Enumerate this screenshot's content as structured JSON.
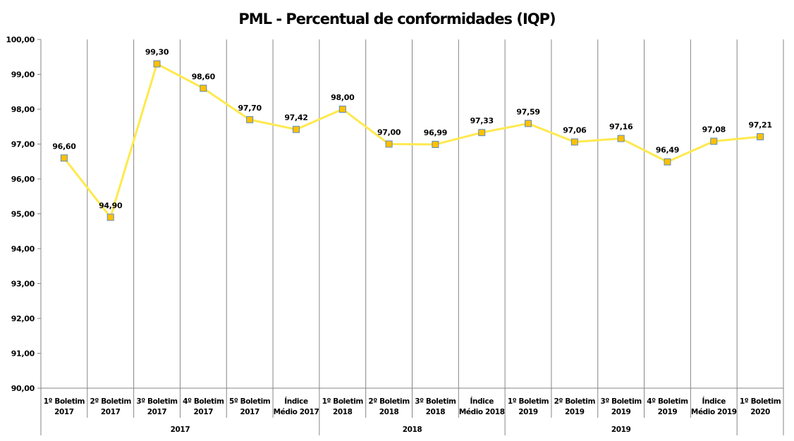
{
  "chart_data": {
    "type": "line",
    "title": "PML - Percentual de conformidades (IQP)",
    "xlabel": "",
    "ylabel": "",
    "ylim": [
      90,
      100
    ],
    "yticks": [
      "90,00",
      "91,00",
      "92,00",
      "93,00",
      "94,00",
      "95,00",
      "96,00",
      "97,00",
      "98,00",
      "99,00",
      "100,00"
    ],
    "grid": "vertical",
    "categories": [
      [
        "1º Boletim",
        "2017"
      ],
      [
        "2º Boletim",
        "2017"
      ],
      [
        "3º Boletim",
        "2017"
      ],
      [
        "4º Boletim",
        "2017"
      ],
      [
        "5º Boletim",
        "2017"
      ],
      [
        "Índice",
        "Médio 2017"
      ],
      [
        "1º Boletim",
        "2018"
      ],
      [
        "2º Boletim",
        "2018"
      ],
      [
        "3º Boletim",
        "2018"
      ],
      [
        "Índice",
        "Médio 2018"
      ],
      [
        "1º Boletim",
        "2019"
      ],
      [
        "2º Boletim",
        "2019"
      ],
      [
        "3º Boletim",
        "2019"
      ],
      [
        "4º Boletim",
        "2019"
      ],
      [
        "Índice",
        "Médio 2019"
      ],
      [
        "1º Boletim",
        "2020"
      ]
    ],
    "groups": [
      {
        "label": "2017",
        "count": 6
      },
      {
        "label": "2018",
        "count": 4
      },
      {
        "label": "2019",
        "count": 5
      },
      {
        "label": "",
        "count": 1
      }
    ],
    "series": [
      {
        "name": "IQP",
        "color": "#FFE94D",
        "marker_color": "#FFC000",
        "marker_border": "#5B8BC4",
        "values": [
          96.6,
          94.9,
          99.3,
          98.6,
          97.7,
          97.42,
          98.0,
          97.0,
          96.99,
          97.33,
          97.59,
          97.06,
          97.16,
          96.49,
          97.08,
          97.21
        ],
        "labels": [
          "96,60",
          "94,90",
          "99,30",
          "98,60",
          "97,70",
          "97,42",
          "98,00",
          "97,00",
          "96,99",
          "97,33",
          "97,59",
          "97,06",
          "97,16",
          "96,49",
          "97,08",
          "97,21"
        ]
      }
    ]
  }
}
